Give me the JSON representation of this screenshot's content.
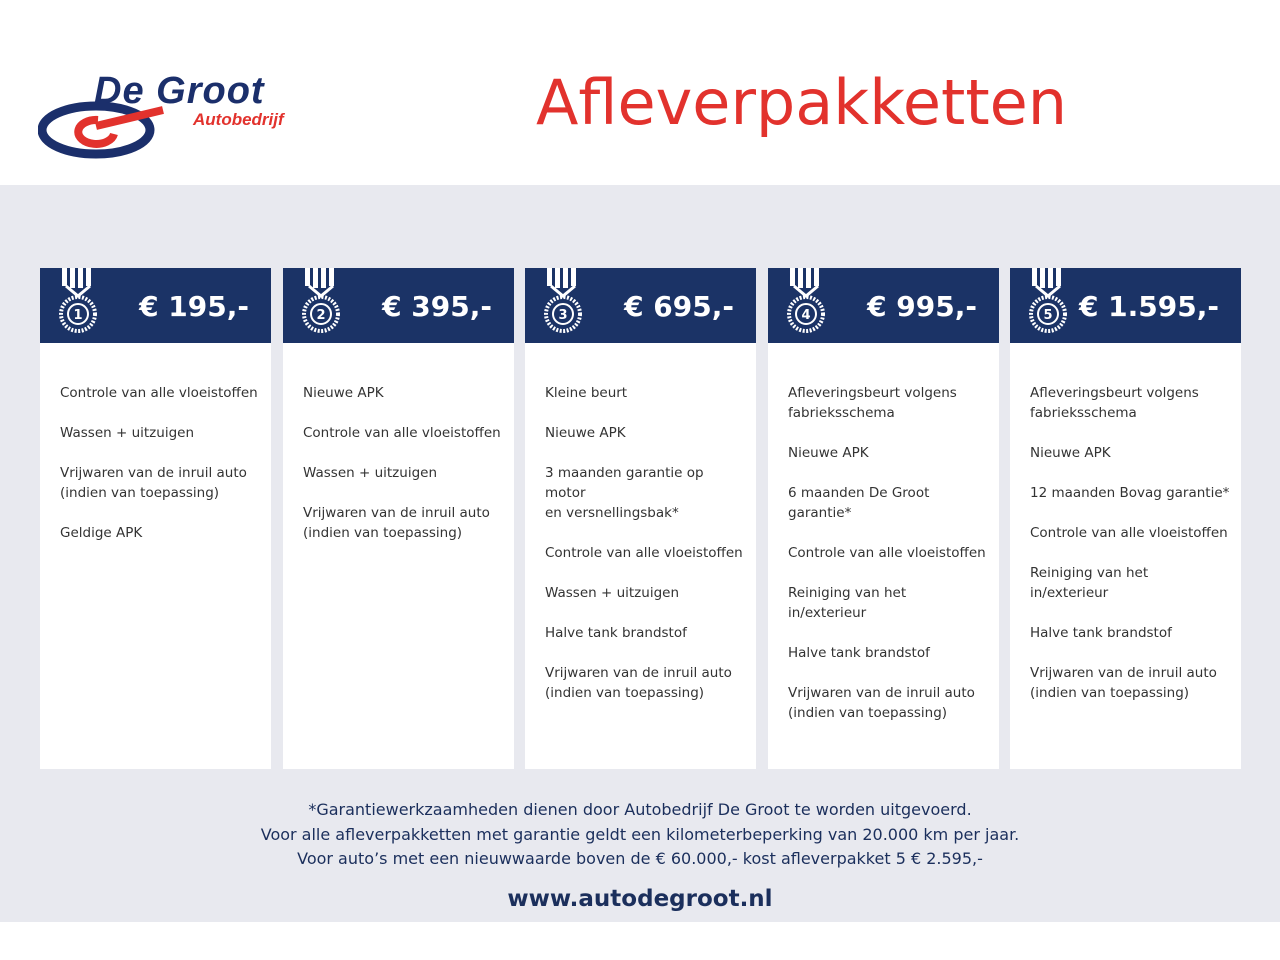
{
  "logo": {
    "name": "De Groot",
    "sub": "Autobedrijf"
  },
  "title": "Afleverpakketten",
  "colors": {
    "navy": "#1b3366",
    "red": "#e2322d",
    "background": "#e8e9ef"
  },
  "packages": [
    {
      "number": "1",
      "price": "€ 195,-",
      "items": [
        "Controle van alle vloeistoffen",
        "Wassen + uitzuigen",
        "Vrijwaren van de inruil auto\n(indien van toepassing)",
        "Geldige APK"
      ]
    },
    {
      "number": "2",
      "price": "€ 395,-",
      "items": [
        "Nieuwe APK",
        "Controle van alle vloeistoffen",
        "Wassen + uitzuigen",
        "Vrijwaren van de inruil auto\n(indien van toepassing)"
      ]
    },
    {
      "number": "3",
      "price": "€ 695,-",
      "items": [
        "Kleine beurt",
        "Nieuwe APK",
        "3 maanden garantie op motor\nen versnellingsbak*",
        "Controle van alle vloeistoffen",
        "Wassen + uitzuigen",
        "Halve tank brandstof",
        "Vrijwaren van de inruil auto\n(indien van toepassing)"
      ]
    },
    {
      "number": "4",
      "price": "€ 995,-",
      "items": [
        "Afleveringsbeurt volgens\nfabrieksschema",
        "Nieuwe APK",
        "6 maanden De Groot garantie*",
        "Controle van alle vloeistoffen",
        "Reiniging van het in/exterieur",
        "Halve tank brandstof",
        "Vrijwaren van de inruil auto\n(indien van toepassing)"
      ]
    },
    {
      "number": "5",
      "price": "€ 1.595,-",
      "items": [
        "Afleveringsbeurt volgens\nfabrieksschema",
        "Nieuwe APK",
        "12 maanden Bovag garantie*",
        "Controle van alle vloeistoffen",
        "Reiniging van het in/exterieur",
        "Halve tank brandstof",
        "Vrijwaren van de inruil auto\n(indien van toepassing)"
      ]
    }
  ],
  "footer": {
    "lines": [
      "*Garantiewerkzaamheden dienen door Autobedrijf De Groot te worden uitgevoerd.",
      "Voor alle afleverpakketten met garantie geldt een kilometerbeperking van 20.000 km per jaar.",
      "Voor auto’s met een nieuwwaarde boven de € 60.000,- kost afleverpakket 5 € 2.595,-"
    ],
    "url": "www.autodegroot.nl"
  }
}
